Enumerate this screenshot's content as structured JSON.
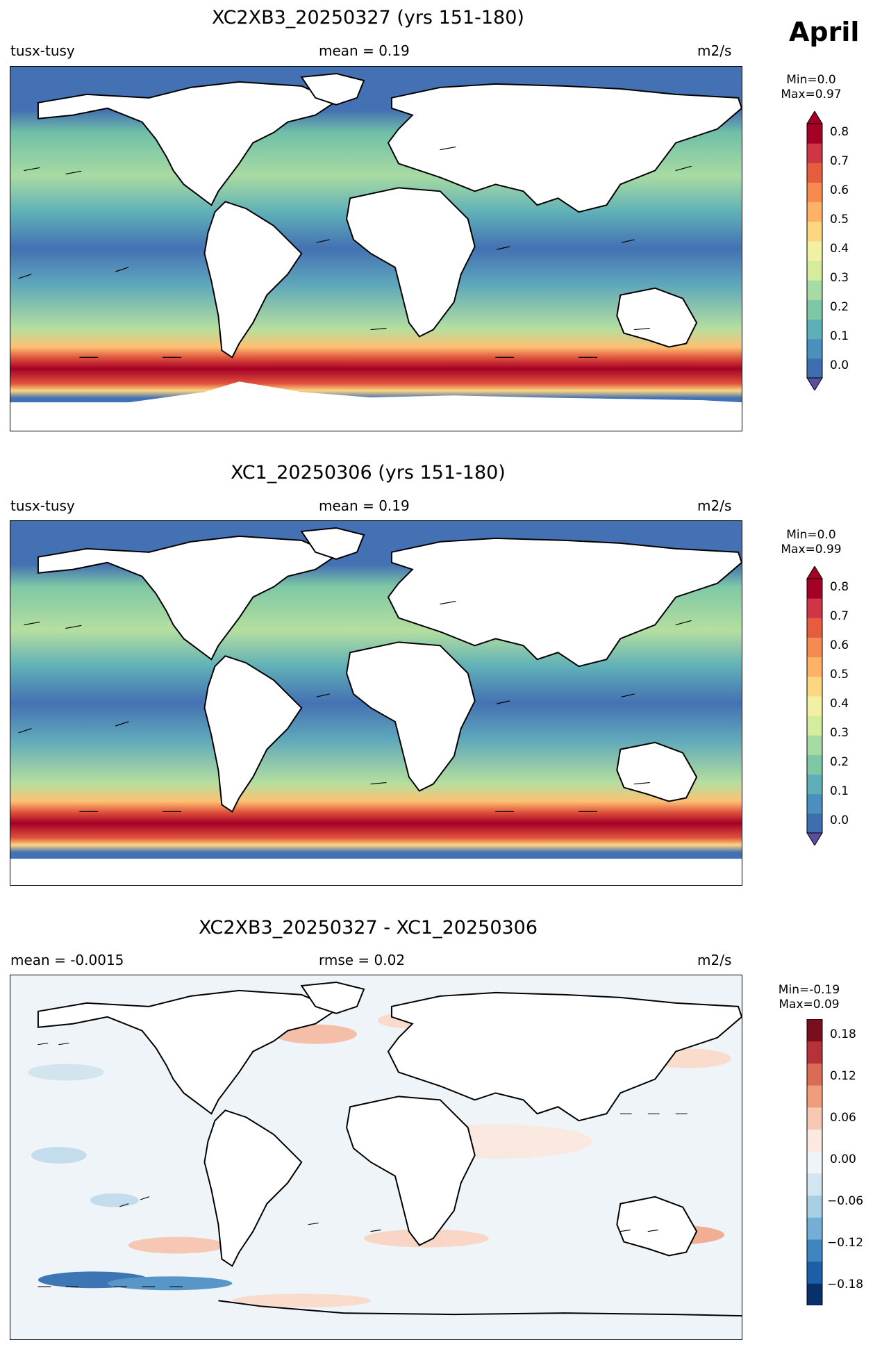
{
  "month": "April",
  "panels": [
    {
      "id": "top",
      "title": "XC2XB3_20250327 (yrs 151-180)",
      "left_label": "tusx-tusy",
      "center_label": "mean = 0.19",
      "right_label": "m2/s",
      "colorbar": {
        "min_label": "Min=0.0",
        "max_label": "Max=0.97",
        "ticks": [
          "0.8",
          "0.7",
          "0.6",
          "0.5",
          "0.4",
          "0.3",
          "0.2",
          "0.1",
          "0.0"
        ],
        "colormap": "RdYlBu_r (Spectral-like)",
        "colors": [
          "#3d6fb0",
          "#4a8fbe",
          "#5eb0b8",
          "#7ec8a6",
          "#a6dba4",
          "#d4ec9c",
          "#f2f0a3",
          "#fdd681",
          "#fdb265",
          "#f78a50",
          "#e65c3f",
          "#ce3545",
          "#a50026"
        ]
      }
    },
    {
      "id": "middle",
      "title": "XC1_20250306 (yrs 151-180)",
      "left_label": "tusx-tusy",
      "center_label": "mean = 0.19",
      "right_label": "m2/s",
      "colorbar": {
        "min_label": "Min=0.0",
        "max_label": "Max=0.99",
        "ticks": [
          "0.8",
          "0.7",
          "0.6",
          "0.5",
          "0.4",
          "0.3",
          "0.2",
          "0.1",
          "0.0"
        ],
        "colormap": "RdYlBu_r (Spectral-like)",
        "colors": [
          "#3d6fb0",
          "#4a8fbe",
          "#5eb0b8",
          "#7ec8a6",
          "#a6dba4",
          "#d4ec9c",
          "#f2f0a3",
          "#fdd681",
          "#fdb265",
          "#f78a50",
          "#e65c3f",
          "#ce3545",
          "#a50026"
        ]
      }
    },
    {
      "id": "bottom",
      "title": "XC2XB3_20250327 - XC1_20250306",
      "left_label": "mean = -0.0015",
      "center_label": "rmse = 0.02",
      "right_label": "m2/s",
      "colorbar": {
        "min_label": "Min=-0.19",
        "max_label": "Max=0.09",
        "ticks": [
          "0.18",
          "0.12",
          "0.06",
          "0.00",
          "−0.06",
          "−0.12",
          "−0.18"
        ],
        "colormap": "RdBu_r diverging",
        "colors": [
          "#08306b",
          "#1c5fa8",
          "#3f86c0",
          "#74aed4",
          "#a8cfe4",
          "#d2e5f0",
          "#eef4f7",
          "#fbe9e1",
          "#f8c9b2",
          "#f09d7e",
          "#da6b55",
          "#b7313a",
          "#7a0d1e"
        ]
      }
    }
  ]
}
